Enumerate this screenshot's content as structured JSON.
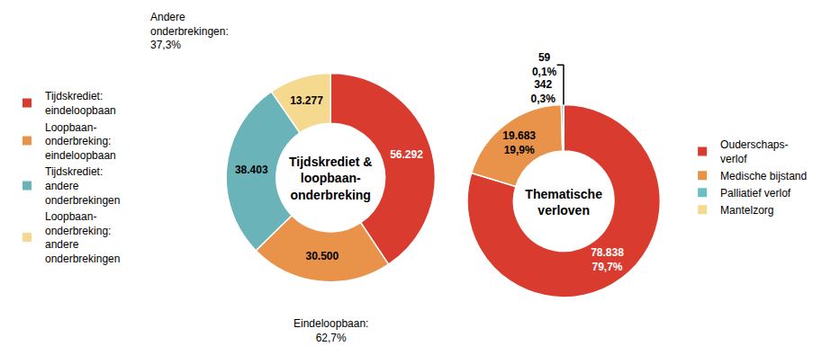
{
  "chart_data": [
    {
      "type": "pie",
      "title": "Tijdskrediet &\nloopbaan-\nonderbreking",
      "categories": [
        "Tijdskrediet:\neindeloopbaan",
        "Loopbaan-\nonderbreking:\neindeloopbaan",
        "Tijdskrediet:\nandere\nonderbrekingen",
        "Loopbaan-\nonderbreking:\nandere\nonderbrekingen"
      ],
      "values": [
        56292,
        30500,
        38403,
        13277
      ],
      "value_labels": [
        "56.292",
        "30.500",
        "38.403",
        "13.277"
      ],
      "colors": [
        "#d93b2e",
        "#e8924a",
        "#6ab3b8",
        "#f5d98e"
      ],
      "data_labels": true,
      "legend": "left",
      "annotations": [
        "Andere\nonderbrekingen:\n37,3%",
        "Eindeloopbaan:\n62,7%"
      ]
    },
    {
      "type": "pie",
      "title": "Thematische\nverloven",
      "categories": [
        "Ouderschaps-\nverlof",
        "Medische bijstand",
        "Palliatief verlof",
        "Mantelzorg"
      ],
      "values": [
        78838,
        19683,
        342,
        59
      ],
      "value_labels": [
        "78.838\n79,7%",
        "19.683\n19,9%",
        "342\n0,3%",
        "59\n0,1%"
      ],
      "colors": [
        "#d93b2e",
        "#e8924a",
        "#6bbfc4",
        "#f5d98e"
      ],
      "data_labels": true,
      "legend": "right"
    }
  ]
}
